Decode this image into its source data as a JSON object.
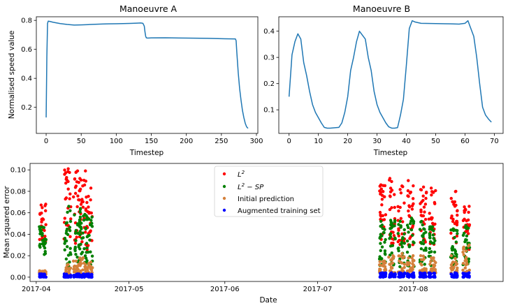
{
  "chart_data": [
    {
      "type": "line",
      "title": "Manoeuvre A",
      "xlabel": "Timestep",
      "ylabel": "Normalised speed value",
      "xlim": [
        -14,
        302
      ],
      "ylim": [
        0.02,
        0.825
      ],
      "xticks": [
        0,
        50,
        100,
        150,
        200,
        250,
        300
      ],
      "yticks": [
        0.2,
        0.4,
        0.6,
        0.8
      ],
      "color": "#1f77b4",
      "series": [
        {
          "x": [
            0,
            1,
            2,
            3,
            5,
            10,
            20,
            30,
            40,
            50,
            60,
            70,
            80,
            90,
            100,
            110,
            120,
            130,
            135,
            138,
            140,
            141,
            142,
            143,
            145,
            150,
            170,
            200,
            230,
            255,
            270,
            271,
            272,
            274,
            276,
            278,
            280,
            282,
            284,
            286,
            288
          ],
          "y": [
            0.13,
            0.55,
            0.78,
            0.795,
            0.793,
            0.787,
            0.778,
            0.772,
            0.768,
            0.769,
            0.771,
            0.773,
            0.775,
            0.776,
            0.777,
            0.778,
            0.779,
            0.781,
            0.782,
            0.78,
            0.76,
            0.72,
            0.69,
            0.679,
            0.678,
            0.679,
            0.68,
            0.678,
            0.676,
            0.673,
            0.672,
            0.66,
            0.58,
            0.44,
            0.33,
            0.25,
            0.18,
            0.13,
            0.09,
            0.065,
            0.055
          ]
        }
      ]
    },
    {
      "type": "line",
      "title": "Manoeuvre B",
      "xlabel": "Timestep",
      "ylabel": "",
      "xlim": [
        -3.5,
        73
      ],
      "ylim": [
        0.01,
        0.455
      ],
      "xticks": [
        0,
        10,
        20,
        30,
        40,
        50,
        60,
        70
      ],
      "yticks": [
        0.1,
        0.2,
        0.3,
        0.4
      ],
      "color": "#1f77b4",
      "series": [
        {
          "x": [
            0,
            1,
            2,
            3,
            4,
            5,
            6,
            7,
            8,
            9,
            10,
            11,
            12,
            13,
            14,
            15,
            16,
            17,
            18,
            19,
            20,
            21,
            22,
            23,
            24,
            25,
            26,
            27,
            28,
            29,
            30,
            31,
            32,
            33,
            34,
            35,
            36,
            37,
            38,
            39,
            40,
            41,
            42,
            43,
            45,
            50,
            55,
            58,
            60,
            61,
            62,
            63,
            64,
            65,
            66,
            67,
            68,
            69
          ],
          "y": [
            0.15,
            0.31,
            0.36,
            0.39,
            0.37,
            0.28,
            0.23,
            0.17,
            0.12,
            0.09,
            0.07,
            0.05,
            0.033,
            0.03,
            0.03,
            0.031,
            0.032,
            0.033,
            0.05,
            0.09,
            0.15,
            0.25,
            0.3,
            0.36,
            0.4,
            0.385,
            0.37,
            0.3,
            0.25,
            0.17,
            0.12,
            0.09,
            0.07,
            0.05,
            0.035,
            0.03,
            0.03,
            0.032,
            0.08,
            0.14,
            0.27,
            0.41,
            0.44,
            0.435,
            0.43,
            0.429,
            0.428,
            0.427,
            0.43,
            0.44,
            0.41,
            0.38,
            0.3,
            0.2,
            0.11,
            0.08,
            0.065,
            0.053
          ]
        }
      ]
    },
    {
      "type": "scatter",
      "title": "",
      "xlabel": "Date",
      "ylabel": "Mean squared error",
      "x_is_date": true,
      "xlim": [
        "2017-03-30",
        "2017-08-30"
      ],
      "ylim": [
        -0.004,
        0.106
      ],
      "xticks": [
        "2017-04-01",
        "2017-05-01",
        "2017-06-01",
        "2017-07-01",
        "2017-08-01"
      ],
      "xticklabels": [
        "2017-04",
        "2017-05",
        "2017-06",
        "2017-07",
        "2017-08"
      ],
      "yticks": [
        0.0,
        0.02,
        0.04,
        0.06,
        0.08,
        0.1
      ],
      "yticklabels": [
        "0.00",
        "0.02",
        "0.04",
        "0.06",
        "0.08",
        "0.10"
      ],
      "legend_position": "top-center",
      "sessions": [
        "2017-04-02",
        "2017-04-10",
        "2017-04-13",
        "2017-04-15",
        "2017-04-17",
        "2017-07-21",
        "2017-07-24",
        "2017-07-27",
        "2017-07-30",
        "2017-08-03",
        "2017-08-06",
        "2017-08-13",
        "2017-08-17"
      ],
      "series": [
        {
          "name": "L²",
          "color": "#ff0000",
          "min": [
            0.03,
            0.03,
            0.02,
            0.03,
            0.025,
            0.035,
            0.03,
            0.03,
            0.03,
            0.03,
            0.025,
            0.03,
            0.025
          ],
          "max": [
            0.068,
            0.101,
            0.099,
            0.099,
            0.083,
            0.086,
            0.092,
            0.085,
            0.09,
            0.084,
            0.083,
            0.08,
            0.066
          ]
        },
        {
          "name": "L² − SP",
          "color": "#008000",
          "min": [
            0.02,
            0.01,
            0.01,
            0.012,
            0.01,
            0.01,
            0.01,
            0.008,
            0.01,
            0.01,
            0.01,
            0.008,
            0.01
          ],
          "max": [
            0.047,
            0.066,
            0.058,
            0.064,
            0.056,
            0.052,
            0.053,
            0.052,
            0.055,
            0.052,
            0.047,
            0.045,
            0.048
          ]
        },
        {
          "name": "Initial prediction",
          "color": "#d4803b",
          "min": [
            0.002,
            0.003,
            0.003,
            0.003,
            0.003,
            0.004,
            0.004,
            0.004,
            0.004,
            0.004,
            0.004,
            0.004,
            0.004
          ],
          "max": [
            0.006,
            0.012,
            0.015,
            0.018,
            0.014,
            0.015,
            0.02,
            0.022,
            0.02,
            0.02,
            0.018,
            0.02,
            0.03
          ]
        },
        {
          "name": "Augmented training set",
          "color": "#0000ff",
          "min": [
            0.0,
            0.0,
            0.0,
            0.0,
            0.0,
            0.0,
            0.0,
            0.0,
            0.0,
            0.0,
            0.0,
            0.0,
            0.0
          ],
          "max": [
            0.003,
            0.003,
            0.003,
            0.003,
            0.003,
            0.004,
            0.004,
            0.004,
            0.004,
            0.004,
            0.004,
            0.004,
            0.004
          ]
        }
      ]
    }
  ]
}
